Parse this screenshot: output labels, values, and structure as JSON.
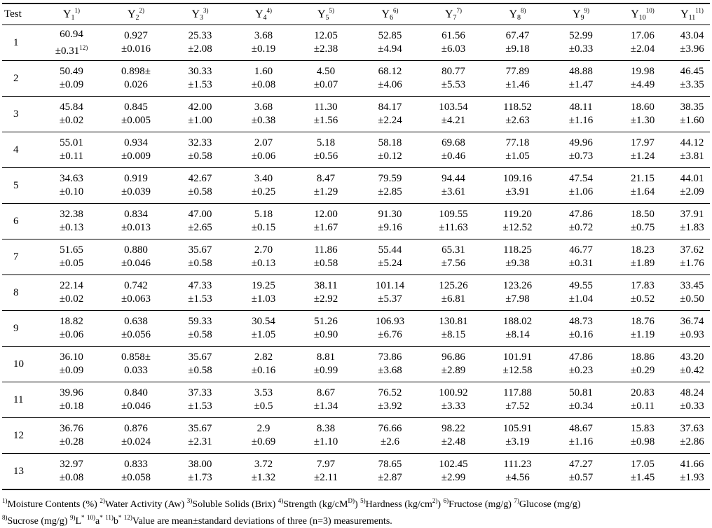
{
  "header": {
    "test_label": "Test",
    "columns": [
      {
        "base": "Y",
        "sub": "1",
        "sup": "1)"
      },
      {
        "base": "Y",
        "sub": "2",
        "sup": "2)"
      },
      {
        "base": "Y",
        "sub": "3",
        "sup": "3)"
      },
      {
        "base": "Y",
        "sub": "4",
        "sup": "4)"
      },
      {
        "base": "Y",
        "sub": "5",
        "sup": "5)"
      },
      {
        "base": "Y",
        "sub": "6",
        "sup": "6)"
      },
      {
        "base": "Y",
        "sub": "7",
        "sup": "7)"
      },
      {
        "base": "Y",
        "sub": "8",
        "sup": "8)"
      },
      {
        "base": "Y",
        "sub": "9",
        "sup": "9)"
      },
      {
        "base": "Y",
        "sub": "10",
        "sup": "10)"
      },
      {
        "base": "Y",
        "sub": "11",
        "sup": "11)"
      }
    ]
  },
  "rows": [
    {
      "test": "1",
      "cells": [
        [
          "60.94",
          "±0.31"
        ],
        [
          "0.927",
          "±0.016"
        ],
        [
          "25.33",
          "±2.08"
        ],
        [
          "3.68",
          "±0.19"
        ],
        [
          "12.05",
          "±2.38"
        ],
        [
          "52.85",
          "±4.94"
        ],
        [
          "61.56",
          "±6.03"
        ],
        [
          "67.47",
          "±9.18"
        ],
        [
          "52.99",
          "±0.33"
        ],
        [
          "17.06",
          "±2.04"
        ],
        [
          "43.04",
          "±3.96"
        ]
      ],
      "note": "12)"
    },
    {
      "test": "2",
      "cells": [
        [
          "50.49",
          "±0.09"
        ],
        [
          "0.898±",
          "0.026"
        ],
        [
          "30.33",
          "±1.53"
        ],
        [
          "1.60",
          "±0.08"
        ],
        [
          "4.50",
          "±0.07"
        ],
        [
          "68.12",
          "±4.06"
        ],
        [
          "80.77",
          "±5.53"
        ],
        [
          "77.89",
          "±1.46"
        ],
        [
          "48.88",
          "±1.47"
        ],
        [
          "19.98",
          "±4.49"
        ],
        [
          "46.45",
          "±3.35"
        ]
      ]
    },
    {
      "test": "3",
      "cells": [
        [
          "45.84",
          "±0.02"
        ],
        [
          "0.845",
          "±0.005"
        ],
        [
          "42.00",
          "±1.00"
        ],
        [
          "3.68",
          "±0.38"
        ],
        [
          "11.30",
          "±1.56"
        ],
        [
          "84.17",
          "±2.24"
        ],
        [
          "103.54",
          "±4.21"
        ],
        [
          "118.52",
          "±2.63"
        ],
        [
          "48.11",
          "±1.16"
        ],
        [
          "18.60",
          "±1.30"
        ],
        [
          "38.35",
          "±1.60"
        ]
      ]
    },
    {
      "test": "4",
      "cells": [
        [
          "55.01",
          "±0.11"
        ],
        [
          "0.934",
          "±0.009"
        ],
        [
          "32.33",
          "±0.58"
        ],
        [
          "2.07",
          "±0.06"
        ],
        [
          "5.18",
          "±0.56"
        ],
        [
          "58.18",
          "±0.12"
        ],
        [
          "69.68",
          "±0.46"
        ],
        [
          "77.18",
          "±1.05"
        ],
        [
          "49.96",
          "±0.73"
        ],
        [
          "17.97",
          "±1.24"
        ],
        [
          "44.12",
          "±3.81"
        ]
      ]
    },
    {
      "test": "5",
      "cells": [
        [
          "34.63",
          "±0.10"
        ],
        [
          "0.919",
          "±0.039"
        ],
        [
          "42.67",
          "±0.58"
        ],
        [
          "3.40",
          "±0.25"
        ],
        [
          "8.47",
          "±1.29"
        ],
        [
          "79.59",
          "±2.85"
        ],
        [
          "94.44",
          "±3.61"
        ],
        [
          "109.16",
          "±3.91"
        ],
        [
          "47.54",
          "±1.06"
        ],
        [
          "21.15",
          "±1.64"
        ],
        [
          "44.01",
          "±2.09"
        ]
      ]
    },
    {
      "test": "6",
      "cells": [
        [
          "32.38",
          "±0.13"
        ],
        [
          "0.834",
          "±0.013"
        ],
        [
          "47.00",
          "±2.65"
        ],
        [
          "5.18",
          "±0.15"
        ],
        [
          "12.00",
          "±1.67"
        ],
        [
          "91.30",
          "±9.16"
        ],
        [
          "109.55",
          "±11.63"
        ],
        [
          "119.20",
          "±12.52"
        ],
        [
          "47.86",
          "±0.72"
        ],
        [
          "18.50",
          "±0.75"
        ],
        [
          "37.91",
          "±1.83"
        ]
      ]
    },
    {
      "test": "7",
      "cells": [
        [
          "51.65",
          "±0.05"
        ],
        [
          "0.880",
          "±0.046"
        ],
        [
          "35.67",
          "±0.58"
        ],
        [
          "2.70",
          "±0.13"
        ],
        [
          "11.86",
          "±0.58"
        ],
        [
          "55.44",
          "±5.24"
        ],
        [
          "65.31",
          "±7.56"
        ],
        [
          "118.25",
          "±9.38"
        ],
        [
          "46.77",
          "±0.31"
        ],
        [
          "18.23",
          "±1.89"
        ],
        [
          "37.62",
          "±1.76"
        ]
      ]
    },
    {
      "test": "8",
      "cells": [
        [
          "22.14",
          "±0.02"
        ],
        [
          "0.742",
          "±0.063"
        ],
        [
          "47.33",
          "±1.53"
        ],
        [
          "19.25",
          "±1.03"
        ],
        [
          "38.11",
          "±2.92"
        ],
        [
          "101.14",
          "±5.37"
        ],
        [
          "125.26",
          "±6.81"
        ],
        [
          "123.26",
          "±7.98"
        ],
        [
          "49.55",
          "±1.04"
        ],
        [
          "17.83",
          "±0.52"
        ],
        [
          "33.45",
          "±0.50"
        ]
      ]
    },
    {
      "test": "9",
      "cells": [
        [
          "18.82",
          "±0.06"
        ],
        [
          "0.638",
          "±0.056"
        ],
        [
          "59.33",
          "±0.58"
        ],
        [
          "30.54",
          "±1.05"
        ],
        [
          "51.26",
          "±0.90"
        ],
        [
          "106.93",
          "±6.76"
        ],
        [
          "130.81",
          "±8.15"
        ],
        [
          "188.02",
          "±8.14"
        ],
        [
          "48.73",
          "±0.16"
        ],
        [
          "18.76",
          "±1.19"
        ],
        [
          "36.74",
          "±0.93"
        ]
      ]
    },
    {
      "test": "10",
      "cells": [
        [
          "36.10",
          "±0.09"
        ],
        [
          "0.858±",
          "0.033"
        ],
        [
          "35.67",
          "±0.58"
        ],
        [
          "2.82",
          "±0.16"
        ],
        [
          "8.81",
          "±0.99"
        ],
        [
          "73.86",
          "±3.68"
        ],
        [
          "96.86",
          "±2.89"
        ],
        [
          "101.91",
          "±12.58"
        ],
        [
          "47.86",
          "±0.23"
        ],
        [
          "18.86",
          "±0.29"
        ],
        [
          "43.20",
          "±0.42"
        ]
      ]
    },
    {
      "test": "11",
      "cells": [
        [
          "39.96",
          "±0.18"
        ],
        [
          "0.840",
          "±0.046"
        ],
        [
          "37.33",
          "±1.53"
        ],
        [
          "3.53",
          "±0.5"
        ],
        [
          "8.67",
          "±1.34"
        ],
        [
          "76.52",
          "±3.92"
        ],
        [
          "100.92",
          "±3.33"
        ],
        [
          "117.88",
          "±7.52"
        ],
        [
          "50.81",
          "±0.34"
        ],
        [
          "20.83",
          "±0.11"
        ],
        [
          "48.24",
          "±0.33"
        ]
      ]
    },
    {
      "test": "12",
      "cells": [
        [
          "36.76",
          "±0.28"
        ],
        [
          "0.876",
          "±0.024"
        ],
        [
          "35.67",
          "±2.31"
        ],
        [
          "2.9",
          "±0.69"
        ],
        [
          "8.38",
          "±1.10"
        ],
        [
          "76.66",
          "±2.6"
        ],
        [
          "98.22",
          "±2.48"
        ],
        [
          "105.91",
          "±3.19"
        ],
        [
          "48.67",
          "±1.16"
        ],
        [
          "15.83",
          "±0.98"
        ],
        [
          "37.63",
          "±2.86"
        ]
      ]
    },
    {
      "test": "13",
      "cells": [
        [
          "32.97",
          "±0.08"
        ],
        [
          "0.833",
          "±0.058"
        ],
        [
          "38.00",
          "±1.73"
        ],
        [
          "3.72",
          "±1.32"
        ],
        [
          "7.97",
          "±2.11"
        ],
        [
          "78.65",
          "±2.87"
        ],
        [
          "102.45",
          "±2.99"
        ],
        [
          "111.23",
          "±4.56"
        ],
        [
          "47.27",
          "±0.57"
        ],
        [
          "17.05",
          "±1.45"
        ],
        [
          "41.66",
          "±1.93"
        ]
      ]
    }
  ],
  "footnotes": [
    {
      "mark": "1)",
      "text": "Moisture Contents (%) "
    },
    {
      "mark": "2)",
      "text": "Water Activity (Aw) "
    },
    {
      "mark": "3)",
      "text": "Soluble Solids (Brix) "
    },
    {
      "mark": "4)",
      "text": "Strength (kg/cM"
    },
    {
      "mark": "D)",
      "text": ") "
    },
    {
      "mark": "5)",
      "text": "Hardness (kg/cm"
    },
    {
      "mark": "2)",
      "text": ") "
    },
    {
      "mark": "6)",
      "text": "Fructose (mg/g) "
    },
    {
      "mark": "7)",
      "text": "Glucose (mg/g)"
    },
    {
      "mark": "BR",
      "text": ""
    },
    {
      "mark": "8)",
      "text": "Sucrose (mg/g) "
    },
    {
      "mark": "9)",
      "text": "L"
    },
    {
      "mark": "*",
      "text": " "
    },
    {
      "mark": "10)",
      "text": "a"
    },
    {
      "mark": "*",
      "text": " "
    },
    {
      "mark": "11)",
      "text": "b"
    },
    {
      "mark": "*",
      "text": " "
    },
    {
      "mark": "12)",
      "text": "Value are mean±standard deviations of three (n=3) measurements."
    }
  ]
}
